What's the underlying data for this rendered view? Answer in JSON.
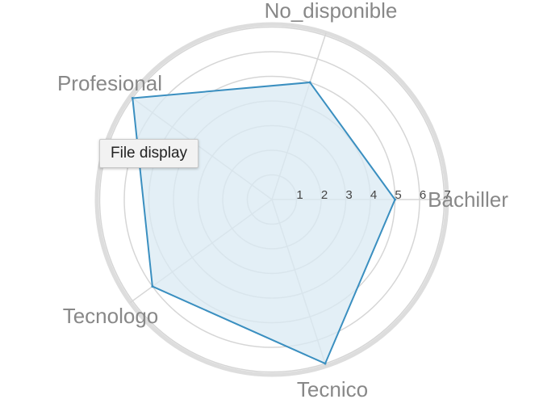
{
  "chart_data": {
    "type": "radar",
    "categories": [
      "Bachiller",
      "No_disponible",
      "Profesional",
      "Tecnologo",
      "Tecnico"
    ],
    "series": [
      {
        "values": [
          5,
          5,
          7,
          6,
          7
        ]
      }
    ],
    "radial_ticks": [
      "1",
      "2",
      "3",
      "4",
      "5",
      "6",
      "7"
    ],
    "rmax": 7,
    "grid": true,
    "colors": {
      "line": "#3a8fc0",
      "fill": "#d9e9f3",
      "grid": "#d6d6d6",
      "outer_ring": "#dddddd",
      "category_label": "#888888",
      "tick_label": "#444444"
    }
  },
  "tooltip": {
    "text": "File display"
  }
}
